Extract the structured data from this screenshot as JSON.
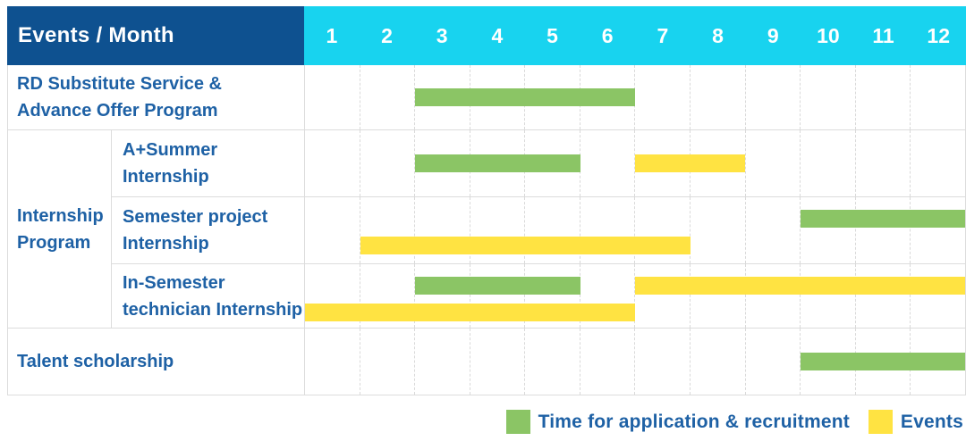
{
  "header": {
    "title": "Events / Month",
    "months": [
      "1",
      "2",
      "3",
      "4",
      "5",
      "6",
      "7",
      "8",
      "9",
      "10",
      "11",
      "12"
    ]
  },
  "colors": {
    "header_bg": "#0e5190",
    "months_bg": "#18d3ef",
    "header_text": "#ffffff",
    "label_text": "#1e61a5",
    "recruitment_green": "#8bc565",
    "events_yellow": "#ffe342",
    "row_border": "#dcdcdc",
    "grid_line": "#d9d9d9"
  },
  "chart_data": {
    "type": "gantt",
    "title": "Events / Month",
    "x_axis": {
      "unit": "month",
      "ticks": [
        "1",
        "2",
        "3",
        "4",
        "5",
        "6",
        "7",
        "8",
        "9",
        "10",
        "11",
        "12"
      ],
      "range": [
        1,
        12
      ]
    },
    "legend": [
      {
        "key": "recruitment",
        "label": "Time for application & recruitment"
      },
      {
        "key": "events",
        "label": "Events"
      }
    ],
    "rows": [
      {
        "group": "",
        "label": "RD Substitute Service &\nAdvance Offer Program",
        "lines": [
          [
            {
              "type": "recruitment",
              "start": 3,
              "end": 6
            }
          ]
        ]
      },
      {
        "group": "Internship\nProgram",
        "label": "A+Summer\nInternship",
        "lines": [
          [
            {
              "type": "recruitment",
              "start": 3,
              "end": 5
            },
            {
              "type": "events",
              "start": 7,
              "end": 8
            }
          ]
        ]
      },
      {
        "group": "Internship\nProgram",
        "label": "Semester project\nInternship",
        "lines": [
          [
            {
              "type": "recruitment",
              "start": 10,
              "end": 12
            }
          ],
          [
            {
              "type": "events",
              "start": 2,
              "end": 7
            }
          ]
        ]
      },
      {
        "group": "Internship\nProgram",
        "label": "In-Semester\ntechnician Internship",
        "lines": [
          [
            {
              "type": "recruitment",
              "start": 3,
              "end": 5
            },
            {
              "type": "events",
              "start": 7,
              "end": 12
            }
          ],
          [
            {
              "type": "events",
              "start": 1,
              "end": 6
            }
          ]
        ]
      },
      {
        "group": "",
        "label": "Talent scholarship",
        "lines": [
          [
            {
              "type": "recruitment",
              "start": 10,
              "end": 12
            }
          ]
        ]
      }
    ]
  }
}
